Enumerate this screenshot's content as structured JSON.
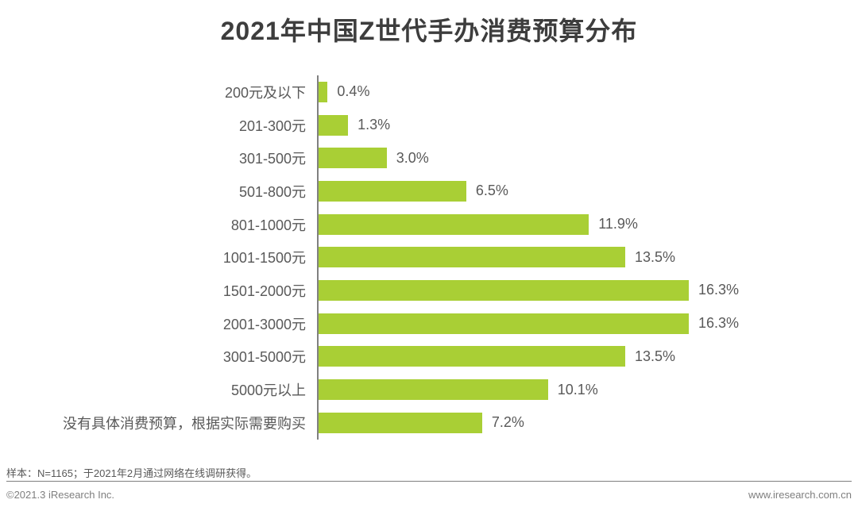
{
  "title": "2021年中国Z世代手办消费预算分布",
  "chart_data": {
    "type": "bar",
    "orientation": "horizontal",
    "title": "2021年中国Z世代手办消费预算分布",
    "categories": [
      "200元及以下",
      "201-300元",
      "301-500元",
      "501-800元",
      "801-1000元",
      "1001-1500元",
      "1501-2000元",
      "2001-3000元",
      "3001-5000元",
      "5000元以上",
      "没有具体消费预算，根据实际需要购买"
    ],
    "values": [
      0.4,
      1.3,
      3.0,
      6.5,
      11.9,
      13.5,
      16.3,
      16.3,
      13.5,
      10.1,
      7.2
    ],
    "value_labels": [
      "0.4%",
      "1.3%",
      "3.0%",
      "6.5%",
      "11.9%",
      "13.5%",
      "16.3%",
      "16.3%",
      "13.5%",
      "10.1%",
      "7.2%"
    ],
    "unit": "%",
    "xlabel": "",
    "ylabel": "",
    "xlim": [
      0,
      16.3
    ],
    "grid": false,
    "legend": null,
    "bar_color": "#a9cf35",
    "axis_color": "#808080"
  },
  "footer": {
    "note": "样本：N=1165；于2021年2月通过网络在线调研获得。",
    "copyright": "©2021.3 iResearch Inc.",
    "website": "www.iresearch.com.cn"
  },
  "colors": {
    "title_text": "#3d3d3d",
    "label_text": "#595959",
    "bar_fill": "#a9cf35",
    "background": "#ffffff"
  }
}
